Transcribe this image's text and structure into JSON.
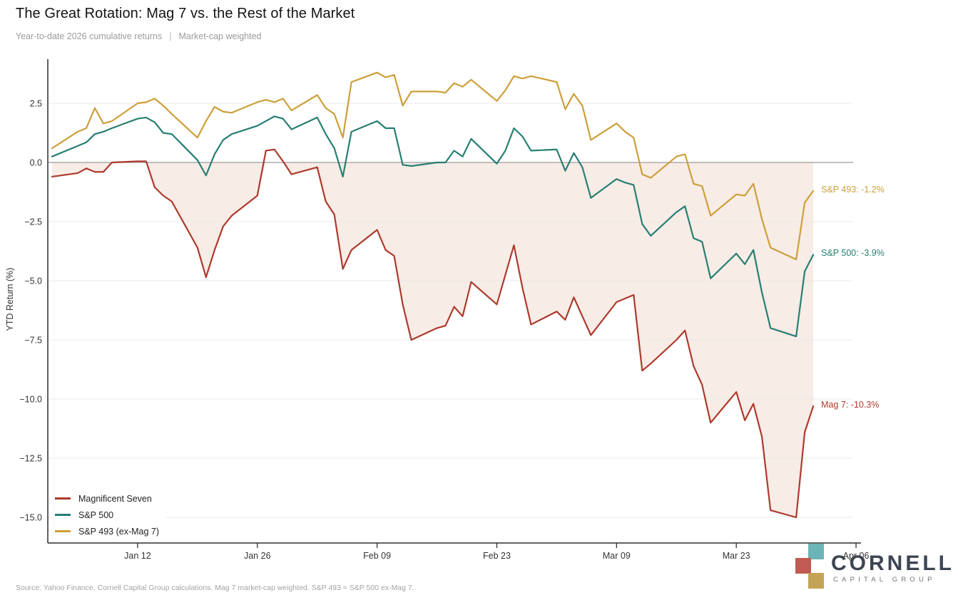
{
  "title": "The Great Rotation: Mag 7 vs. the Rest of the Market",
  "subtitle_left": "Year-to-date 2026 cumulative returns",
  "subtitle_sep": "|",
  "subtitle_right": "Market-cap weighted",
  "source": "Source: Yahoo Finance, Cornell Capital Group calculations. Mag 7 market-cap weighted. S&P 493 = S&P 500 ex-Mag 7.",
  "logo": {
    "wordmark": "CORNELL",
    "tagline": "CAPITAL GROUP",
    "square_teal": "#6db4b7",
    "square_red": "#c05a52",
    "square_gold": "#c3a356",
    "text_color": "#3d4552"
  },
  "chart_data": {
    "type": "line",
    "title": "The Great Rotation: Mag 7 vs. the Rest of the Market",
    "subtitle": "Year-to-date 2026 cumulative returns | Market-cap weighted",
    "ylabel": "YTD Return (%)",
    "ylim": [
      -16.2,
      4.4
    ],
    "grid": "horizontal only",
    "legend_position": "lower left",
    "yticks": [
      2.5,
      0.0,
      -2.5,
      -5.0,
      -7.5,
      -10.0,
      -12.5,
      -15.0
    ],
    "ytick_labels": [
      "2.5",
      "0.0",
      "−2.5",
      "−5.0",
      "−7.5",
      "−10.0",
      "−12.5",
      "−15.0"
    ],
    "xticks": [
      {
        "label": "Jan 12",
        "day": 12
      },
      {
        "label": "Jan 26",
        "day": 26
      },
      {
        "label": "Feb 09",
        "day": 40
      },
      {
        "label": "Feb 23",
        "day": 54
      },
      {
        "label": "Mar 09",
        "day": 68
      },
      {
        "label": "Mar 23",
        "day": 82
      },
      {
        "label": "Apr 06",
        "day": 96
      }
    ],
    "x_axis_note": "day-of-year for 2026 weekdays Jan 2 through Apr 1",
    "x_day_of_year": [
      2,
      5,
      6,
      7,
      8,
      9,
      12,
      13,
      14,
      15,
      16,
      19,
      20,
      21,
      22,
      23,
      26,
      27,
      28,
      29,
      30,
      33,
      34,
      35,
      36,
      37,
      40,
      41,
      42,
      43,
      44,
      47,
      48,
      49,
      50,
      51,
      54,
      55,
      56,
      57,
      58,
      61,
      62,
      63,
      64,
      65,
      68,
      69,
      70,
      71,
      72,
      75,
      76,
      77,
      78,
      79,
      82,
      83,
      84,
      85,
      86,
      89,
      90,
      91
    ],
    "series": [
      {
        "name": "Magnificent Seven",
        "color": "#ad3a2c",
        "end_label": "Mag 7: -10.3%",
        "final_value": -10.3,
        "values": [
          -0.6,
          -0.45,
          -0.25,
          -0.4,
          -0.4,
          0.0,
          0.05,
          0.05,
          -1.05,
          -1.4,
          -1.65,
          -3.6,
          -4.85,
          -3.7,
          -2.7,
          -2.25,
          -1.4,
          0.5,
          0.55,
          0.05,
          -0.5,
          -0.2,
          -1.65,
          -2.2,
          -4.5,
          -3.7,
          -2.85,
          -3.7,
          -3.95,
          -6.0,
          -7.5,
          -7.0,
          -6.9,
          -6.1,
          -6.5,
          -5.05,
          -6.0,
          -4.75,
          -3.5,
          -5.3,
          -6.85,
          -6.3,
          -6.65,
          -5.7,
          -6.5,
          -7.3,
          -5.9,
          -5.75,
          -5.6,
          -8.8,
          -8.5,
          -7.5,
          -7.1,
          -8.6,
          -9.4,
          -11.0,
          -9.7,
          -10.9,
          -10.2,
          -11.6,
          -14.7,
          -15.0,
          -11.4,
          -10.3
        ]
      },
      {
        "name": "S&P 500",
        "color": "#267f72",
        "end_label": "S&P 500: -3.9%",
        "final_value": -3.9,
        "values": [
          0.25,
          0.7,
          0.85,
          1.2,
          1.3,
          1.45,
          1.85,
          1.9,
          1.7,
          1.25,
          1.2,
          0.1,
          -0.55,
          0.35,
          0.95,
          1.2,
          1.55,
          1.75,
          1.95,
          1.85,
          1.4,
          1.9,
          1.2,
          0.6,
          -0.6,
          1.3,
          1.75,
          1.45,
          1.45,
          -0.1,
          -0.15,
          0.0,
          0.0,
          0.5,
          0.25,
          1.0,
          -0.05,
          0.5,
          1.45,
          1.1,
          0.5,
          0.55,
          -0.35,
          0.4,
          -0.2,
          -1.5,
          -0.7,
          -0.85,
          -0.95,
          -2.6,
          -3.1,
          -2.1,
          -1.85,
          -3.2,
          -3.35,
          -4.9,
          -3.85,
          -4.3,
          -3.7,
          -5.5,
          -7.0,
          -7.35,
          -4.6,
          -3.9
        ]
      },
      {
        "name": "S&P 493 (ex-Mag 7)",
        "color": "#cd9f3a",
        "end_label": "S&P 493: -1.2%",
        "final_value": -1.2,
        "values": [
          0.6,
          1.3,
          1.45,
          2.3,
          1.65,
          1.75,
          2.5,
          2.55,
          2.7,
          2.4,
          2.05,
          1.05,
          1.75,
          2.35,
          2.15,
          2.1,
          2.55,
          2.65,
          2.55,
          2.7,
          2.2,
          2.85,
          2.3,
          2.05,
          1.05,
          3.4,
          3.8,
          3.6,
          3.7,
          2.4,
          3.0,
          3.0,
          2.95,
          3.35,
          3.2,
          3.5,
          2.6,
          3.05,
          3.65,
          3.55,
          3.65,
          3.4,
          2.25,
          2.9,
          2.4,
          0.95,
          1.65,
          1.3,
          1.05,
          -0.5,
          -0.65,
          0.25,
          0.35,
          -0.9,
          -1.0,
          -2.25,
          -1.35,
          -1.4,
          -0.9,
          -2.4,
          -3.6,
          -4.1,
          -1.7,
          -1.2
        ]
      }
    ],
    "fill_between": {
      "series": "Magnificent Seven",
      "baseline": 0,
      "color": "#f8ece6"
    },
    "zero_line_color": "#ababab",
    "grid_color": "#eaeaea",
    "axis_color": "#2f2f2f",
    "tick_text_color": "#333333"
  }
}
